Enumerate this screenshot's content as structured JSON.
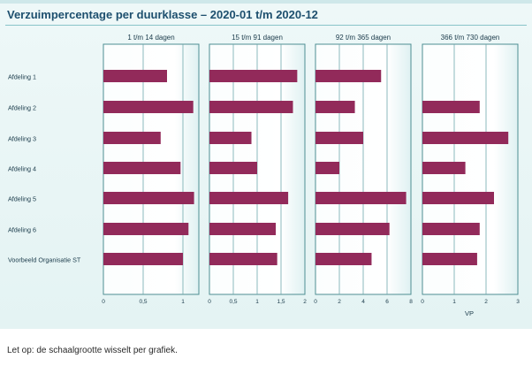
{
  "title": "Verzuimpercentage per duurklasse – 2020-01 t/m 2020-12",
  "footnote": "Let op: de schaalgrootte wisselt per grafiek.",
  "bar_color": "#922a5a",
  "chart_data": {
    "type": "bar",
    "orientation": "horizontal",
    "categories": [
      "Afdeling 1",
      "Afdeling 2",
      "Afdeling 3",
      "Afdeling 4",
      "Afdeling 5",
      "Afdeling 6",
      "Voorbeeld Organisatie ST"
    ],
    "xlabel": "VP",
    "grid": true,
    "panels": [
      {
        "title": "1 t/m 14 dagen",
        "xlim": [
          0,
          1.2
        ],
        "ticks": [
          0,
          0.5,
          1
        ],
        "tick_labels": [
          "0",
          "0,5",
          "1"
        ],
        "values": [
          0.8,
          1.13,
          0.72,
          0.97,
          1.14,
          1.07,
          1.0
        ]
      },
      {
        "title": "15 t/m 91 dagen",
        "xlim": [
          0,
          2
        ],
        "ticks": [
          0,
          0.5,
          1,
          1.5,
          2
        ],
        "tick_labels": [
          "0",
          "0,5",
          "1",
          "1,5",
          "2"
        ],
        "values": [
          1.84,
          1.75,
          0.88,
          1.0,
          1.65,
          1.39,
          1.42
        ]
      },
      {
        "title": "92 t/m 365 dagen",
        "xlim": [
          0,
          8
        ],
        "ticks": [
          0,
          2,
          4,
          6,
          8
        ],
        "tick_labels": [
          "0",
          "2",
          "4",
          "6",
          "8"
        ],
        "values": [
          5.5,
          3.3,
          4.0,
          2.0,
          7.6,
          6.2,
          4.7
        ]
      },
      {
        "title": "366 t/m 730 dagen",
        "xlim": [
          0,
          3
        ],
        "ticks": [
          0,
          1,
          2,
          3
        ],
        "tick_labels": [
          "0",
          "1",
          "2",
          "3"
        ],
        "values": [
          0,
          1.8,
          2.7,
          1.35,
          2.25,
          1.8,
          1.72
        ]
      }
    ]
  }
}
